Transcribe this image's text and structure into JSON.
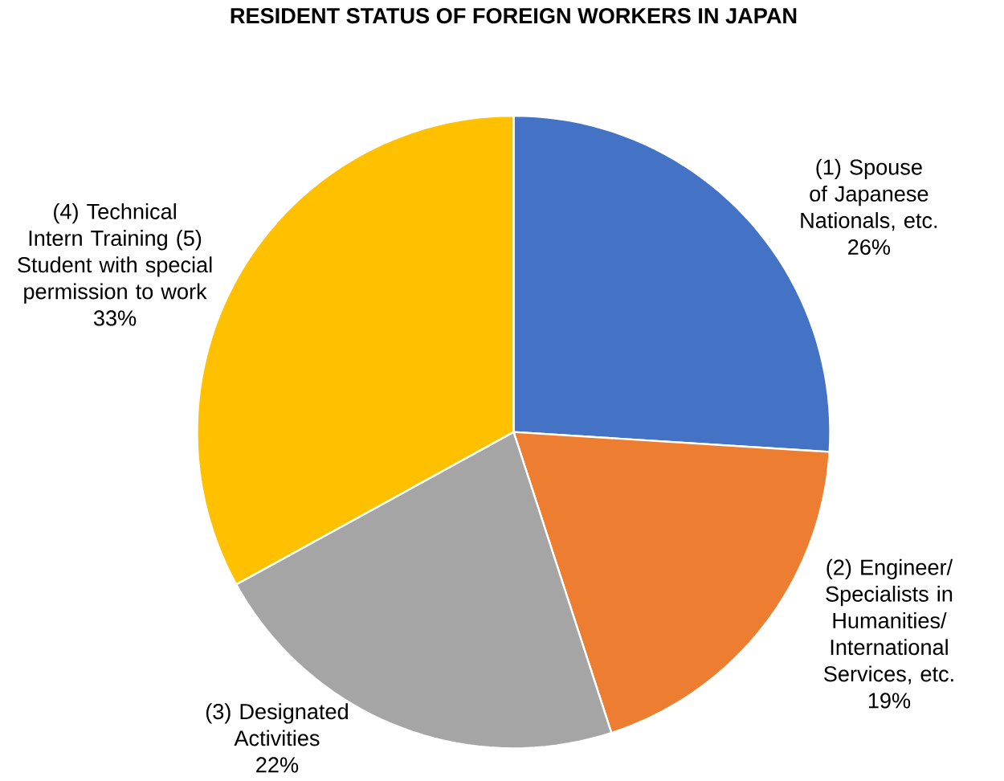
{
  "chart_data": {
    "type": "pie",
    "title": "RESIDENT STATUS OF FOREIGN WORKERS IN JAPAN",
    "categories": [
      "(1) Spouse of Japanese Nationals, etc.",
      "(2) Engineer/ Specialists in Humanities/ International Services, etc.",
      "(3) Designated Activities",
      "(4) Technical Intern Training (5) Student with special permission to work"
    ],
    "values": [
      26,
      19,
      22,
      33
    ],
    "colors": [
      "#4472c4",
      "#ed7d31",
      "#a5a5a5",
      "#ffc000"
    ],
    "value_labels": [
      "26%",
      "19%",
      "22%",
      "33%"
    ]
  }
}
